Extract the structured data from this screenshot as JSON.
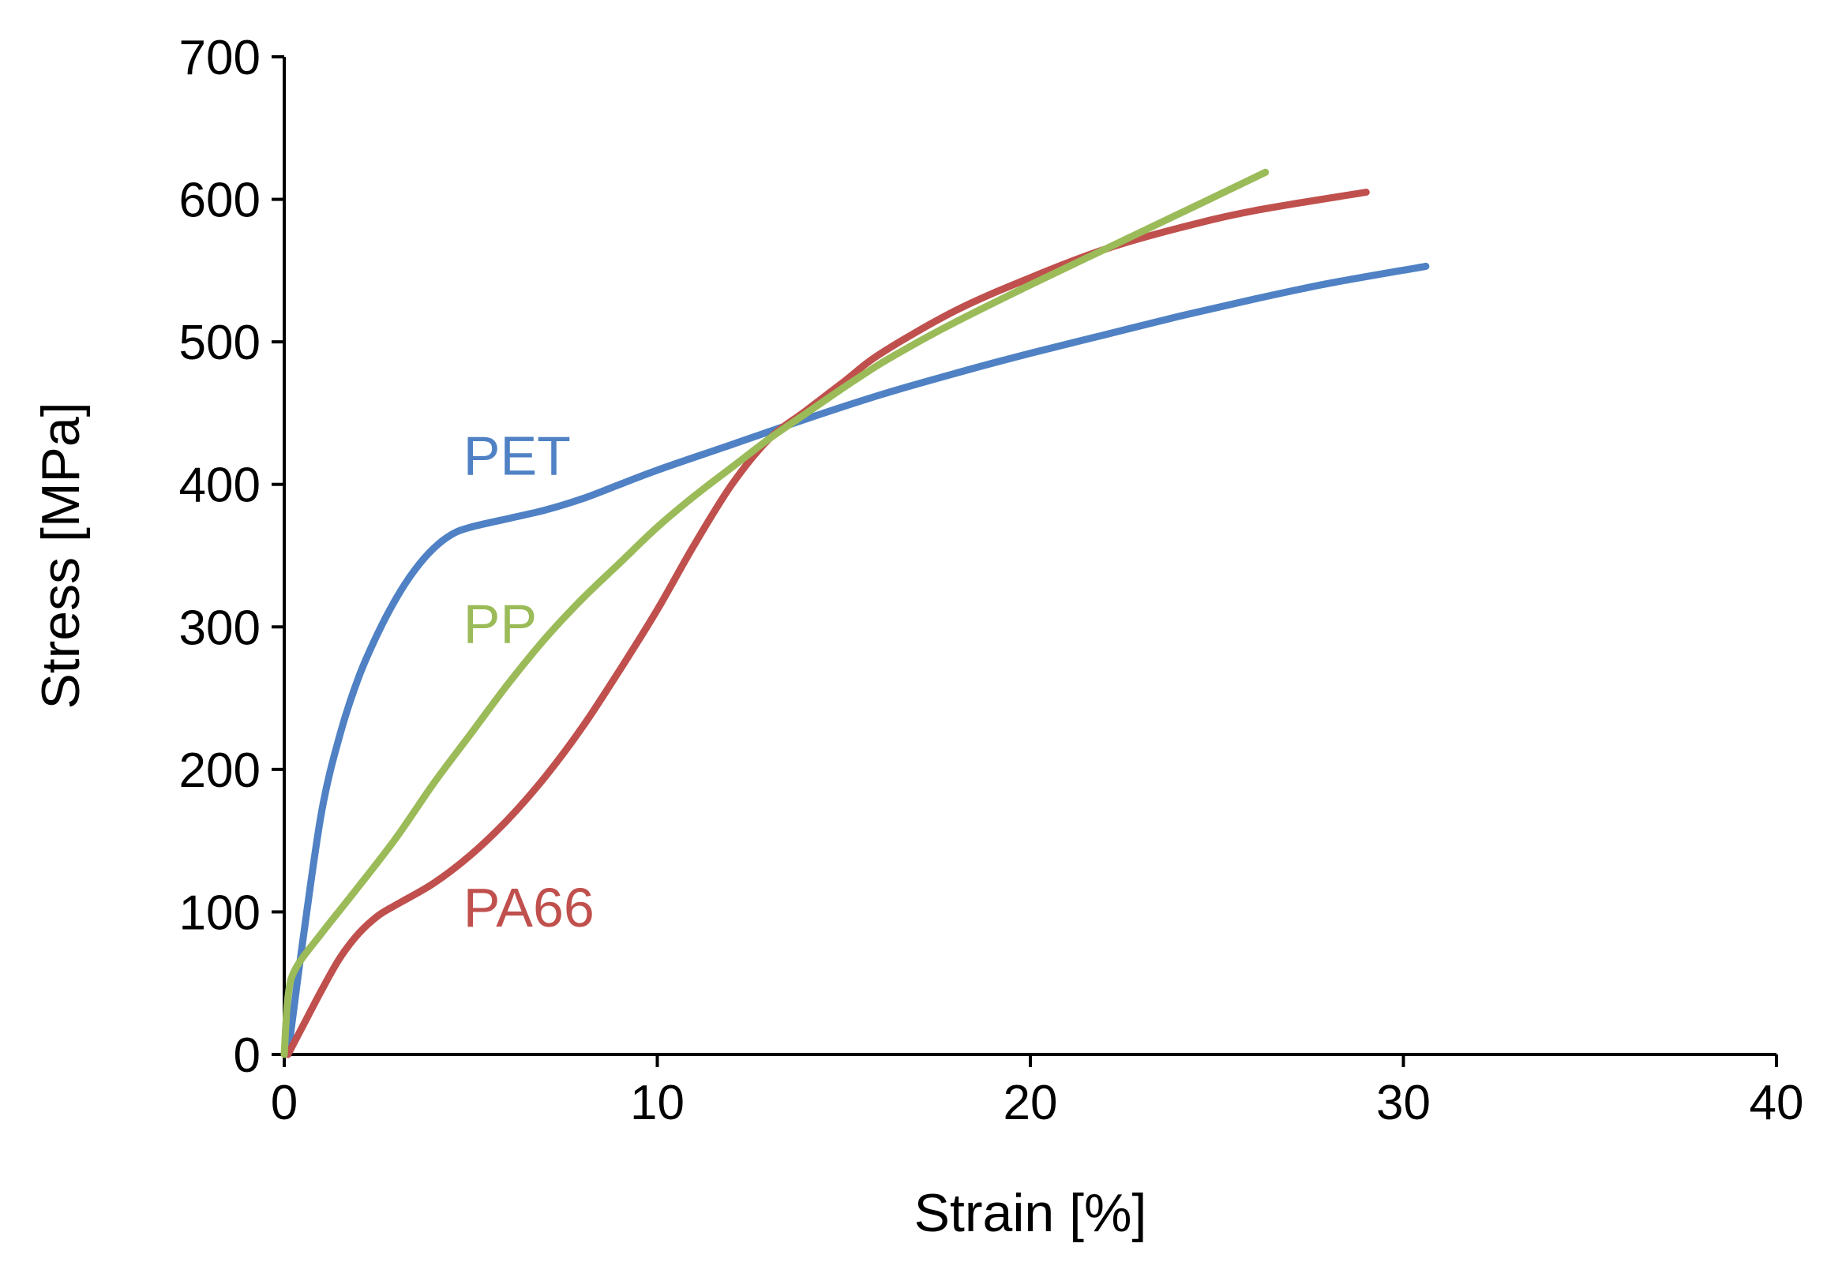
{
  "chart_data": {
    "type": "line",
    "title": "",
    "xlabel": "Strain [%]",
    "ylabel": "Stress [MPa]",
    "xlim": [
      0,
      40
    ],
    "ylim": [
      0,
      700
    ],
    "xticks": [
      0,
      10,
      20,
      30,
      40
    ],
    "yticks": [
      0,
      100,
      200,
      300,
      400,
      500,
      600,
      700
    ],
    "xtick_labels": [
      "0",
      "10",
      "20",
      "30",
      "40"
    ],
    "ytick_labels": [
      "0",
      "100",
      "200",
      "300",
      "400",
      "500",
      "600",
      "700"
    ],
    "grid": false,
    "legend": "none (series labelled inline)",
    "series": [
      {
        "name": "PET",
        "color": "#4f81c4",
        "label_at": [
          4.8,
          420
        ],
        "points": [
          [
            0.1,
            0
          ],
          [
            0.5,
            80
          ],
          [
            1,
            170
          ],
          [
            1.5,
            225
          ],
          [
            2,
            265
          ],
          [
            2.5,
            295
          ],
          [
            3,
            320
          ],
          [
            3.5,
            340
          ],
          [
            4,
            355
          ],
          [
            4.5,
            365
          ],
          [
            5,
            370
          ],
          [
            6,
            376
          ],
          [
            7,
            382
          ],
          [
            8,
            390
          ],
          [
            9,
            400
          ],
          [
            10,
            410
          ],
          [
            12,
            428
          ],
          [
            14,
            446
          ],
          [
            16,
            463
          ],
          [
            18,
            478
          ],
          [
            20,
            492
          ],
          [
            22,
            505
          ],
          [
            24,
            518
          ],
          [
            26,
            530
          ],
          [
            28,
            541
          ],
          [
            30.6,
            553
          ]
        ]
      },
      {
        "name": "PP",
        "color": "#9bbb59",
        "label_at": [
          4.8,
          302
        ],
        "points": [
          [
            0,
            0
          ],
          [
            0.1,
            40
          ],
          [
            0.3,
            60
          ],
          [
            1,
            85
          ],
          [
            2,
            118
          ],
          [
            3,
            152
          ],
          [
            4,
            190
          ],
          [
            5,
            225
          ],
          [
            6,
            260
          ],
          [
            7,
            292
          ],
          [
            8,
            320
          ],
          [
            9,
            345
          ],
          [
            10,
            370
          ],
          [
            11,
            392
          ],
          [
            12,
            412
          ],
          [
            13,
            432
          ],
          [
            14,
            450
          ],
          [
            15,
            468
          ],
          [
            16,
            485
          ],
          [
            17,
            500
          ],
          [
            18,
            514
          ],
          [
            20,
            540
          ],
          [
            22,
            565
          ],
          [
            24,
            590
          ],
          [
            26.3,
            619
          ]
        ]
      },
      {
        "name": "PA66",
        "color": "#c0504d",
        "label_at": [
          4.8,
          103
        ],
        "points": [
          [
            0.1,
            0
          ],
          [
            0.5,
            20
          ],
          [
            1,
            45
          ],
          [
            1.5,
            68
          ],
          [
            2,
            85
          ],
          [
            2.5,
            97
          ],
          [
            3,
            105
          ],
          [
            4,
            120
          ],
          [
            5,
            140
          ],
          [
            6,
            165
          ],
          [
            7,
            195
          ],
          [
            8,
            230
          ],
          [
            9,
            270
          ],
          [
            10,
            312
          ],
          [
            11,
            358
          ],
          [
            12,
            400
          ],
          [
            13,
            432
          ],
          [
            14,
            452
          ],
          [
            15,
            472
          ],
          [
            16,
            492
          ],
          [
            18,
            522
          ],
          [
            20,
            545
          ],
          [
            22,
            565
          ],
          [
            24,
            580
          ],
          [
            26,
            592
          ],
          [
            29,
            605
          ]
        ]
      }
    ]
  }
}
